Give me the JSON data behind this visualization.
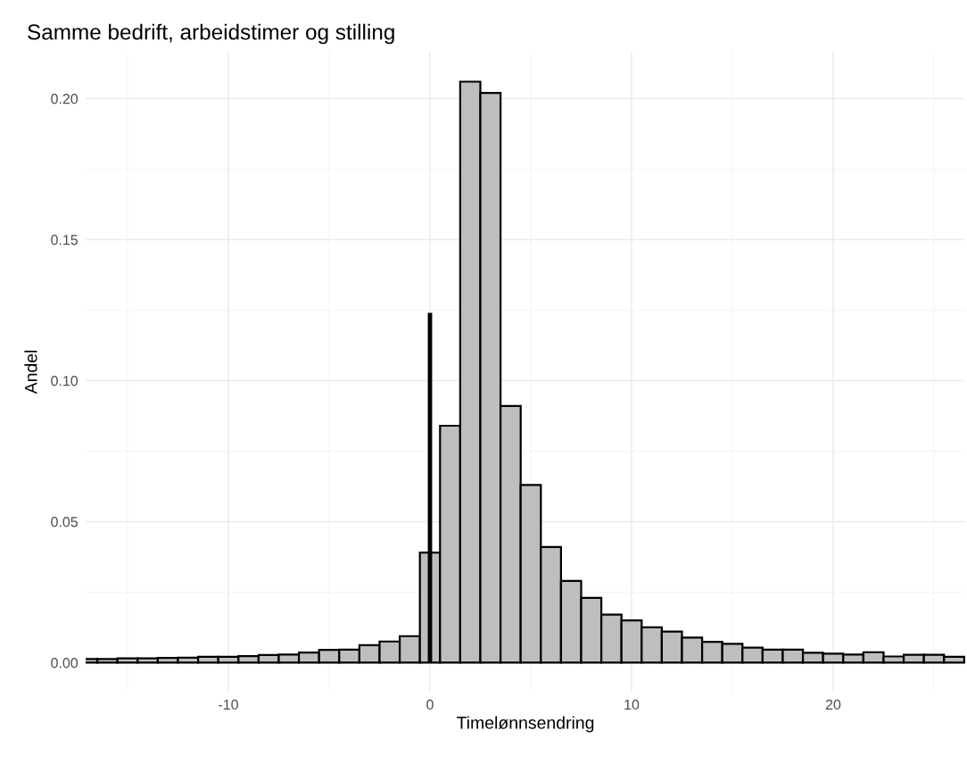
{
  "chart_data": {
    "type": "histogram",
    "title": "Samme bedrift, arbeidstimer og stilling",
    "xlabel": "Timelønnsendring",
    "ylabel": "Andel",
    "bins": [
      -17.5,
      -16.5,
      -15.5,
      -14.5,
      -13.5,
      -12.5,
      -11.5,
      -10.5,
      -9.5,
      -8.5,
      -7.5,
      -6.5,
      -5.5,
      -4.5,
      -3.5,
      -2.5,
      -1.5,
      -0.5,
      0.5,
      1.5,
      2.5,
      3.5,
      4.5,
      5.5,
      6.5,
      7.5,
      8.5,
      9.5,
      10.5,
      11.5,
      12.5,
      13.5,
      14.5,
      15.5,
      16.5,
      17.5,
      18.5,
      19.5,
      20.5,
      21.5,
      22.5,
      23.5,
      24.5,
      25.5,
      26.5
    ],
    "values": [
      0.0013,
      0.0013,
      0.0015,
      0.0015,
      0.0017,
      0.0018,
      0.0021,
      0.0021,
      0.0023,
      0.0027,
      0.0029,
      0.0036,
      0.0045,
      0.0046,
      0.0062,
      0.0075,
      0.0094,
      0.039,
      0.084,
      0.206,
      0.202,
      0.091,
      0.063,
      0.041,
      0.029,
      0.023,
      0.017,
      0.015,
      0.0125,
      0.011,
      0.0089,
      0.0074,
      0.0067,
      0.0053,
      0.0046,
      0.0046,
      0.0035,
      0.0032,
      0.0029,
      0.0037,
      0.0022,
      0.0028,
      0.0028,
      0.0021
    ],
    "color": "#bebebe",
    "series": [
      {
        "type": "line",
        "color": "#000000",
        "x": [
          0,
          0
        ],
        "values": [
          0,
          0.124
        ]
      }
    ],
    "xlim": [
      -17.08,
      26.55
    ],
    "xticks": [
      -10,
      0,
      10,
      20
    ],
    "ylim": [
      -0.0103,
      0.2166
    ],
    "yticks": [
      {
        "value": 0,
        "label": "0.00"
      },
      {
        "value": 0.05,
        "label": "0.05"
      },
      {
        "value": 0.1,
        "label": "0.10"
      },
      {
        "value": 0.15,
        "label": "0.15"
      },
      {
        "value": 0.2,
        "label": "0.20"
      }
    ],
    "grid": true
  }
}
